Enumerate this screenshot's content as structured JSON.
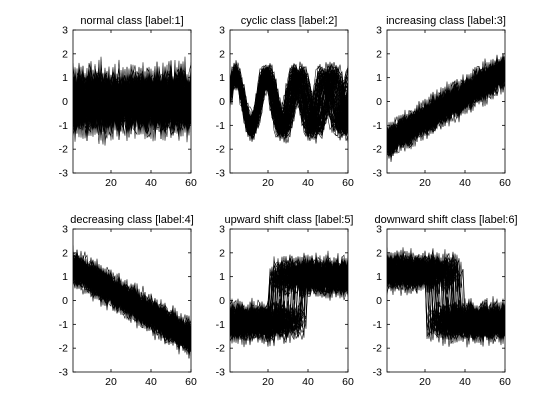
{
  "chart_data": [
    {
      "type": "line",
      "title": "normal class [label:1]",
      "xlabel": "",
      "ylabel": "",
      "xlim": [
        1,
        60
      ],
      "ylim": [
        -3,
        3
      ],
      "x_ticks": [
        20,
        40,
        60
      ],
      "y_ticks": [
        -3,
        -2,
        -1,
        0,
        1,
        2,
        3
      ],
      "pattern": "normal",
      "series_count": 100,
      "points_per_series": 60,
      "approx_mean": 0,
      "approx_range": [
        -2,
        2
      ]
    },
    {
      "type": "line",
      "title": "cyclic class [label:2]",
      "xlabel": "",
      "ylabel": "",
      "xlim": [
        1,
        60
      ],
      "ylim": [
        -3,
        3
      ],
      "x_ticks": [
        20,
        40,
        60
      ],
      "y_ticks": [
        -3,
        -2,
        -1,
        0,
        1,
        2,
        3
      ],
      "pattern": "cyclic",
      "series_count": 100,
      "points_per_series": 60,
      "approx_range": [
        -2,
        2
      ]
    },
    {
      "type": "line",
      "title": "increasing class [label:3]",
      "xlabel": "",
      "ylabel": "",
      "xlim": [
        1,
        60
      ],
      "ylim": [
        -3,
        3
      ],
      "x_ticks": [
        20,
        40,
        60
      ],
      "y_ticks": [
        -3,
        -2,
        -1,
        0,
        1,
        2,
        3
      ],
      "pattern": "increasing",
      "series_count": 100,
      "points_per_series": 60,
      "approx_start": -1.7,
      "approx_end": 1.3
    },
    {
      "type": "line",
      "title": "decreasing class [label:4]",
      "xlabel": "",
      "ylabel": "",
      "xlim": [
        1,
        60
      ],
      "ylim": [
        -3,
        3
      ],
      "x_ticks": [
        20,
        40,
        60
      ],
      "y_ticks": [
        -3,
        -2,
        -1,
        0,
        1,
        2,
        3
      ],
      "pattern": "decreasing",
      "series_count": 100,
      "points_per_series": 60,
      "approx_start": 1.4,
      "approx_end": -1.6
    },
    {
      "type": "line",
      "title": "upward shift class [label:5]",
      "xlabel": "",
      "ylabel": "",
      "xlim": [
        1,
        60
      ],
      "ylim": [
        -3,
        3
      ],
      "x_ticks": [
        20,
        40,
        60
      ],
      "y_ticks": [
        -3,
        -2,
        -1,
        0,
        1,
        2,
        3
      ],
      "pattern": "upward_shift",
      "series_count": 100,
      "points_per_series": 60,
      "approx_before": -0.9,
      "approx_after": 1.0,
      "shift_range": [
        20,
        40
      ]
    },
    {
      "type": "line",
      "title": "downward shift class [label:6]",
      "xlabel": "",
      "ylabel": "",
      "xlim": [
        1,
        60
      ],
      "ylim": [
        -3,
        3
      ],
      "x_ticks": [
        20,
        40,
        60
      ],
      "y_ticks": [
        -3,
        -2,
        -1,
        0,
        1,
        2,
        3
      ],
      "pattern": "downward_shift",
      "series_count": 100,
      "points_per_series": 60,
      "approx_before": 1.2,
      "approx_after": -0.9,
      "shift_range": [
        20,
        40
      ]
    }
  ]
}
